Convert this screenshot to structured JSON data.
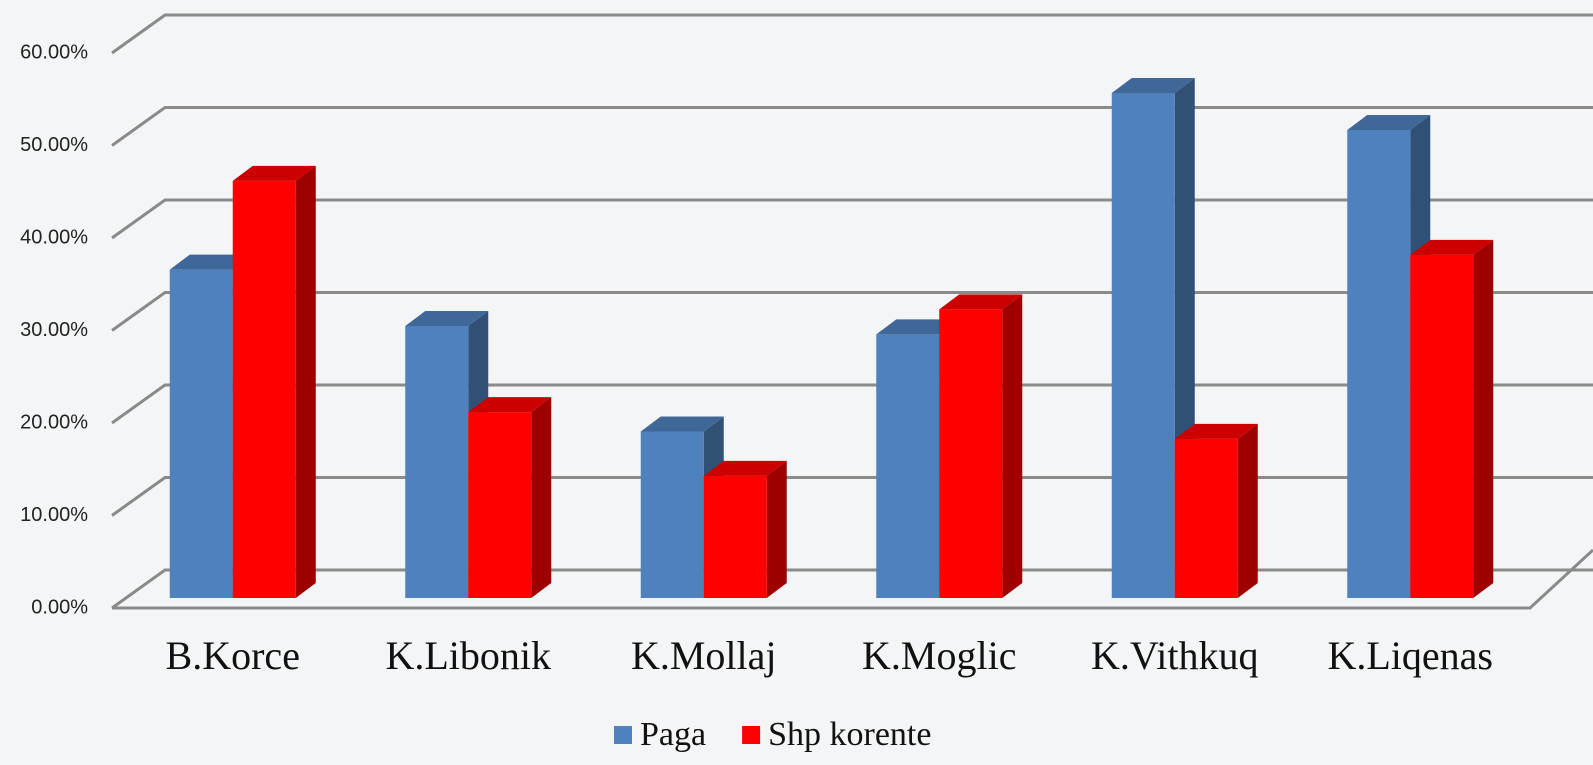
{
  "chart_data": {
    "type": "bar3d",
    "categories": [
      "B.Korce",
      "K.Libonik",
      "K.Mollaj",
      "K.Moglic",
      "K.Vithkuq",
      "K.Liqenas"
    ],
    "series": [
      {
        "name": "Paga",
        "color": "#4f81bd",
        "values": [
          35.5,
          29.4,
          18.0,
          28.5,
          54.6,
          50.6
        ]
      },
      {
        "name": "Shp korente",
        "color": "#ff0000",
        "values": [
          45.1,
          20.1,
          13.2,
          31.2,
          17.2,
          37.1
        ]
      }
    ],
    "ylim": [
      0,
      60
    ],
    "yticks": [
      {
        "value": 0,
        "label": "0.00%"
      },
      {
        "value": 10,
        "label": "10.00%"
      },
      {
        "value": 20,
        "label": "20.00%"
      },
      {
        "value": 30,
        "label": "30.00%"
      },
      {
        "value": 40,
        "label": "40.00%"
      },
      {
        "value": 50,
        "label": "50.00%"
      },
      {
        "value": 60,
        "label": "60.00%"
      }
    ],
    "grid": true,
    "legend": "bottom"
  }
}
